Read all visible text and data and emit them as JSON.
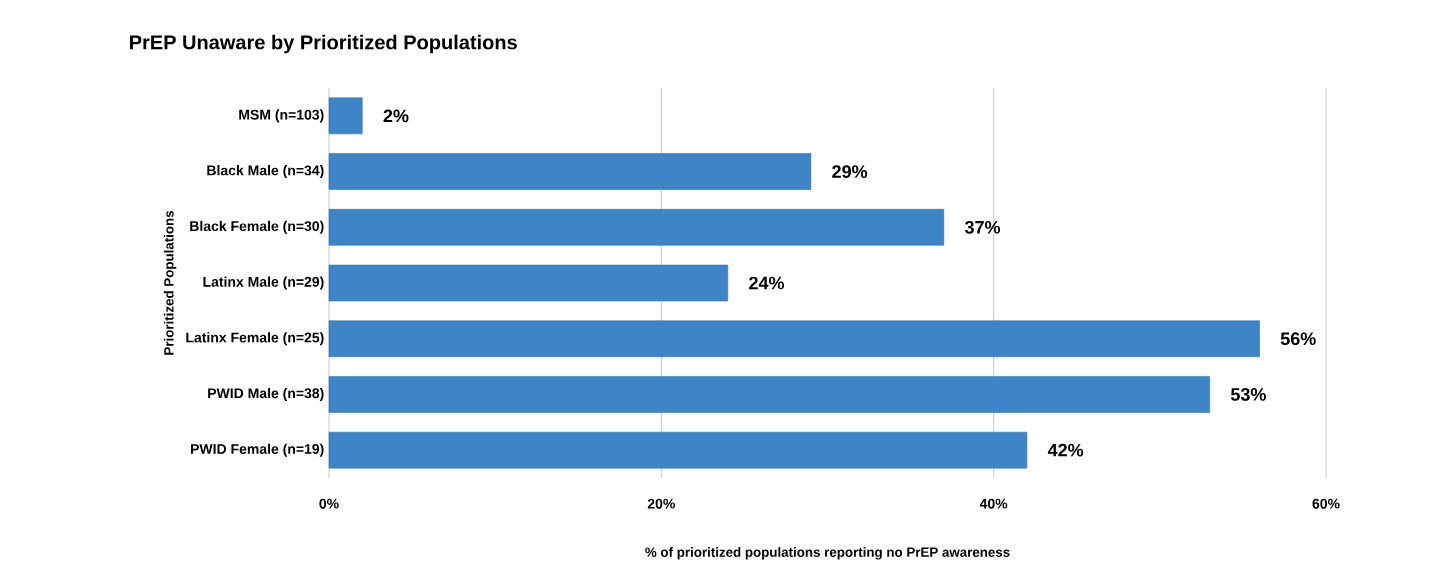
{
  "chart_data": {
    "type": "bar",
    "orientation": "horizontal",
    "title": "PrEP Unaware by Prioritized Populations",
    "xlabel": "% of prioritized populations reporting no PrEP awareness",
    "ylabel": "Prioritized Populations",
    "categories": [
      "MSM (n=103)",
      "Black Male (n=34)",
      "Black Female (n=30)",
      "Latinx Male (n=29)",
      "Latinx Female (n=25)",
      "PWID Male  (n=38)",
      "PWID Female (n=19)"
    ],
    "values": [
      2,
      29,
      37,
      24,
      56,
      53,
      42
    ],
    "value_labels": [
      "2%",
      "29%",
      "37%",
      "24%",
      "56%",
      "53%",
      "42%"
    ],
    "color": "#3d85c6",
    "xlim": [
      0,
      60
    ],
    "xticks": [
      {
        "value": 0,
        "label": "0%"
      },
      {
        "value": 20,
        "label": "20%"
      },
      {
        "value": 40,
        "label": "40%"
      },
      {
        "value": 60,
        "label": "60%"
      }
    ],
    "grid": "x"
  }
}
